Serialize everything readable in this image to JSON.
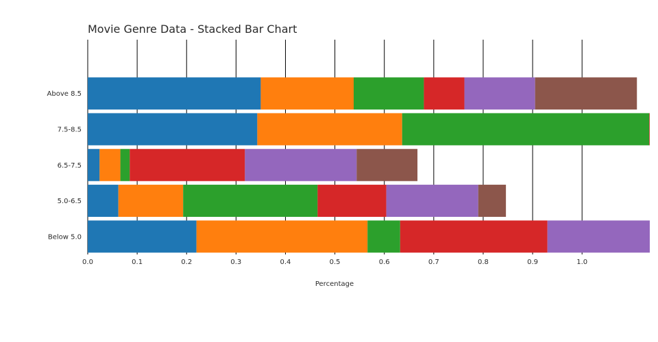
{
  "chart_data": {
    "type": "bar",
    "orientation": "horizontal",
    "stacked": true,
    "title": "Movie Genre Data - Stacked Bar Chart",
    "xlabel": "Percentage",
    "ylabel": "",
    "xlim": [
      0,
      1.137
    ],
    "x_ticks": [
      "0.0",
      "0.1",
      "0.2",
      "0.3",
      "0.4",
      "0.5",
      "0.6",
      "0.7",
      "0.8",
      "0.9",
      "1.0"
    ],
    "grid": "vertical",
    "legend": "none",
    "categories": [
      "Below 5.0",
      "5.0-6.5",
      "6.5-7.5",
      "7.5-8.5",
      "Above 8.5"
    ],
    "series": [
      {
        "color": "#1f77b4",
        "values": [
          0.22,
          0.062,
          0.024,
          0.343,
          0.35
        ]
      },
      {
        "color": "#ff7f0e",
        "values": [
          0.346,
          0.131,
          0.042,
          0.293,
          0.188
        ]
      },
      {
        "color": "#2ca02c",
        "values": [
          0.066,
          0.272,
          0.019,
          0.5,
          0.142
        ]
      },
      {
        "color": "#d62728",
        "values": [
          0.298,
          0.139,
          0.233,
          0.003,
          0.082
        ]
      },
      {
        "color": "#9467bd",
        "values": [
          0.21,
          0.186,
          0.226,
          0.0,
          0.143
        ]
      },
      {
        "color": "#8c564b",
        "values": [
          0.0,
          0.056,
          0.123,
          0.0,
          0.206
        ]
      }
    ]
  }
}
